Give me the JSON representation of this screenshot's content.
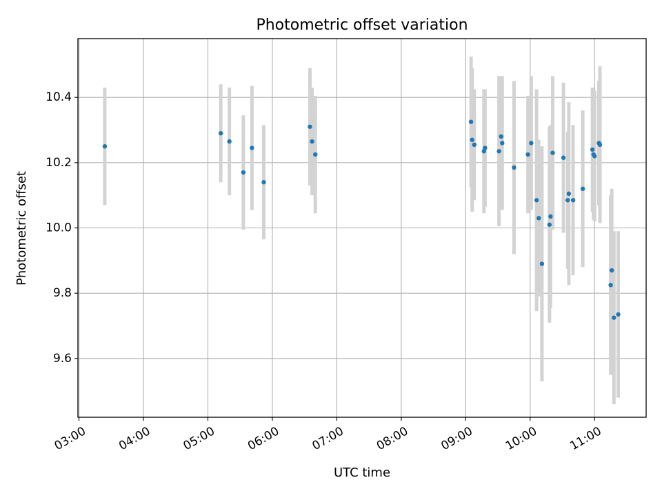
{
  "chart_data": {
    "type": "scatter",
    "title": "Photometric offset variation",
    "xlabel": "UTC time",
    "ylabel": "Photometric offset",
    "x_ticks": [
      "03:00",
      "04:00",
      "05:00",
      "06:00",
      "07:00",
      "08:00",
      "09:00",
      "10:00",
      "11:00"
    ],
    "y_ticks": [
      "9.6",
      "9.8",
      "10.0",
      "10.2",
      "10.4"
    ],
    "xlim": [
      "02:59",
      "11:48"
    ],
    "ylim": [
      9.42,
      10.58
    ],
    "grid": true,
    "legend": "none",
    "colors": {
      "point": "#1f77b4",
      "error_bar": "#d3d3d3",
      "grid": "#b0b0b0",
      "axes": "#000000"
    },
    "series": [
      {
        "points": [
          {
            "x": "03:24",
            "y": 10.25,
            "yerr": 0.18
          },
          {
            "x": "05:12",
            "y": 10.29,
            "yerr": 0.15
          },
          {
            "x": "05:20",
            "y": 10.265,
            "yerr": 0.165
          },
          {
            "x": "05:33",
            "y": 10.17,
            "yerr": 0.175
          },
          {
            "x": "05:41",
            "y": 10.245,
            "yerr": 0.19
          },
          {
            "x": "05:52",
            "y": 10.14,
            "yerr": 0.175
          },
          {
            "x": "06:35",
            "y": 10.31,
            "yerr": 0.18
          },
          {
            "x": "06:37",
            "y": 10.265,
            "yerr": 0.165
          },
          {
            "x": "06:40",
            "y": 10.225,
            "yerr": 0.18
          },
          {
            "x": "09:05",
            "y": 10.325,
            "yerr": 0.2
          },
          {
            "x": "09:06",
            "y": 10.27,
            "yerr": 0.22
          },
          {
            "x": "09:08",
            "y": 10.255,
            "yerr": 0.17
          },
          {
            "x": "09:17",
            "y": 10.235,
            "yerr": 0.19
          },
          {
            "x": "09:18",
            "y": 10.245,
            "yerr": 0.18
          },
          {
            "x": "09:31",
            "y": 10.235,
            "yerr": 0.23
          },
          {
            "x": "09:33",
            "y": 10.28,
            "yerr": 0.185
          },
          {
            "x": "09:34",
            "y": 10.26,
            "yerr": 0.205
          },
          {
            "x": "09:45",
            "y": 10.185,
            "yerr": 0.265
          },
          {
            "x": "09:58",
            "y": 10.225,
            "yerr": 0.18
          },
          {
            "x": "10:01",
            "y": 10.26,
            "yerr": 0.205
          },
          {
            "x": "10:06",
            "y": 10.085,
            "yerr": 0.34
          },
          {
            "x": "10:08",
            "y": 10.03,
            "yerr": 0.24
          },
          {
            "x": "10:11",
            "y": 9.89,
            "yerr": 0.36
          },
          {
            "x": "10:18",
            "y": 10.01,
            "yerr": 0.3
          },
          {
            "x": "10:19",
            "y": 10.035,
            "yerr": 0.28
          },
          {
            "x": "10:21",
            "y": 10.23,
            "yerr": 0.235
          },
          {
            "x": "10:31",
            "y": 10.215,
            "yerr": 0.23
          },
          {
            "x": "10:35",
            "y": 10.085,
            "yerr": 0.21
          },
          {
            "x": "10:36",
            "y": 10.105,
            "yerr": 0.28
          },
          {
            "x": "10:40",
            "y": 10.085,
            "yerr": 0.23
          },
          {
            "x": "10:49",
            "y": 10.12,
            "yerr": 0.24
          },
          {
            "x": "10:58",
            "y": 10.24,
            "yerr": 0.19
          },
          {
            "x": "10:59",
            "y": 10.225,
            "yerr": 0.2
          },
          {
            "x": "11:00",
            "y": 10.22,
            "yerr": 0.2
          },
          {
            "x": "11:04",
            "y": 10.26,
            "yerr": 0.19
          },
          {
            "x": "11:05",
            "y": 10.255,
            "yerr": 0.24
          },
          {
            "x": "11:15",
            "y": 9.825,
            "yerr": 0.275
          },
          {
            "x": "11:16",
            "y": 9.87,
            "yerr": 0.25
          },
          {
            "x": "11:18",
            "y": 9.725,
            "yerr": 0.265
          },
          {
            "x": "11:22",
            "y": 9.735,
            "yerr": 0.255
          }
        ]
      }
    ]
  }
}
